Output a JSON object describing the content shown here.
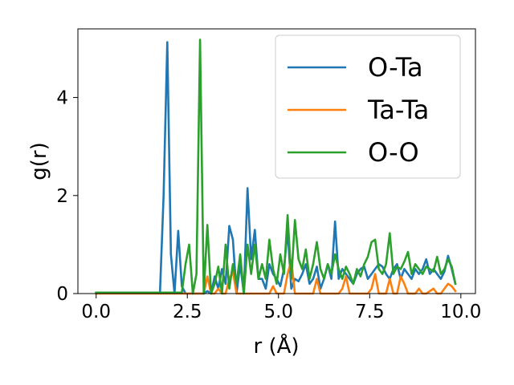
{
  "chart_data": {
    "type": "line",
    "title": "",
    "xlabel": "r (Å)",
    "ylabel": "g(r)",
    "xlim": [
      -0.5,
      10.4
    ],
    "ylim": [
      0,
      5.4
    ],
    "xticks": [
      0.0,
      2.5,
      5.0,
      7.5,
      10.0
    ],
    "xtick_labels": [
      "0.0",
      "2.5",
      "5.0",
      "7.5",
      "10.0"
    ],
    "yticks": [
      0,
      2,
      4
    ],
    "ytick_labels": [
      "0",
      "2",
      "4"
    ],
    "grid": false,
    "legend_position": "top-right",
    "series": [
      {
        "name": "O-Ta",
        "color": "#1f77b4",
        "x": [
          0,
          1.75,
          1.85,
          1.95,
          2.05,
          2.15,
          2.25,
          2.35,
          2.45,
          2.55,
          2.65,
          2.75,
          2.85,
          2.95,
          3.05,
          3.15,
          3.25,
          3.35,
          3.45,
          3.55,
          3.65,
          3.75,
          3.85,
          3.95,
          4.05,
          4.15,
          4.25,
          4.35,
          4.45,
          4.55,
          4.65,
          4.75,
          4.85,
          4.95,
          5.05,
          5.15,
          5.25,
          5.35,
          5.45,
          5.55,
          5.65,
          5.75,
          5.85,
          5.95,
          6.05,
          6.15,
          6.25,
          6.35,
          6.45,
          6.55,
          6.65,
          6.75,
          6.85,
          6.95,
          7.05,
          7.15,
          7.25,
          7.35,
          7.45,
          7.55,
          7.65,
          7.75,
          7.85,
          7.95,
          8.05,
          8.15,
          8.25,
          8.35,
          8.45,
          8.55,
          8.65,
          8.75,
          8.85,
          8.95,
          9.05,
          9.15,
          9.25,
          9.35,
          9.45,
          9.55,
          9.65,
          9.75,
          9.85
        ],
        "y": [
          0.02,
          0.02,
          2.0,
          5.13,
          0.8,
          0.0,
          1.28,
          0.15,
          0.0,
          0.0,
          0.0,
          0.0,
          0.0,
          0.0,
          0.05,
          0.0,
          0.35,
          0.1,
          0.5,
          0.2,
          1.38,
          1.1,
          0.0,
          0.6,
          0.0,
          2.15,
          0.7,
          1.3,
          0.3,
          0.3,
          0.1,
          0.6,
          0.4,
          0.3,
          0.15,
          0.5,
          1.3,
          0.1,
          0.3,
          0.25,
          0.4,
          0.6,
          0.2,
          0.3,
          0.55,
          0.1,
          0.3,
          0.6,
          0.3,
          1.47,
          0.3,
          0.5,
          0.4,
          0.3,
          0.2,
          0.4,
          0.5,
          0.55,
          0.3,
          0.4,
          0.5,
          0.6,
          0.55,
          0.4,
          0.3,
          0.5,
          0.6,
          0.3,
          0.5,
          0.4,
          0.3,
          0.5,
          0.4,
          0.5,
          0.7,
          0.4,
          0.5,
          0.4,
          0.3,
          0.45,
          0.77,
          0.5,
          0.2
        ]
      },
      {
        "name": "Ta-Ta",
        "color": "#ff7f0e",
        "x": [
          0,
          2.85,
          2.95,
          3.05,
          3.15,
          3.25,
          3.35,
          3.45,
          3.55,
          3.65,
          3.75,
          3.85,
          3.95,
          4.05,
          4.15,
          4.25,
          4.35,
          4.45,
          4.55,
          4.65,
          4.75,
          4.85,
          4.95,
          5.05,
          5.15,
          5.25,
          5.35,
          5.45,
          5.55,
          5.65,
          5.75,
          5.85,
          5.95,
          6.05,
          6.15,
          6.25,
          6.35,
          6.45,
          6.55,
          6.65,
          6.75,
          6.85,
          6.95,
          7.05,
          7.15,
          7.25,
          7.35,
          7.45,
          7.55,
          7.65,
          7.75,
          7.85,
          7.95,
          8.05,
          8.15,
          8.25,
          8.35,
          8.45,
          8.55,
          8.65,
          8.75,
          8.85,
          8.95,
          9.05,
          9.15,
          9.25,
          9.35,
          9.45,
          9.55,
          9.65,
          9.75,
          9.85
        ],
        "y": [
          0.0,
          0.0,
          0.0,
          0.35,
          0.0,
          0.0,
          0.1,
          0.0,
          0.0,
          0.3,
          0.45,
          0.0,
          0.0,
          0.0,
          0.0,
          0.0,
          0.0,
          0.0,
          0.0,
          0.0,
          0.0,
          0.15,
          0.0,
          0.0,
          0.0,
          0.4,
          0.68,
          0.0,
          0.0,
          0.0,
          0.0,
          0.0,
          0.0,
          0.3,
          0.0,
          0.0,
          0.0,
          0.0,
          0.0,
          0.0,
          0.1,
          0.35,
          0.0,
          0.0,
          0.0,
          0.0,
          0.0,
          0.0,
          0.1,
          0.4,
          0.0,
          0.0,
          0.0,
          0.3,
          0.0,
          0.0,
          0.35,
          0.2,
          0.0,
          0.0,
          0.0,
          0.1,
          0.0,
          0.0,
          0.05,
          0.1,
          0.0,
          0.0,
          0.1,
          0.2,
          0.15,
          0.05
        ]
      },
      {
        "name": "O-O",
        "color": "#2ca02c",
        "x": [
          0,
          2.35,
          2.45,
          2.55,
          2.65,
          2.75,
          2.85,
          2.95,
          3.05,
          3.15,
          3.25,
          3.35,
          3.45,
          3.55,
          3.65,
          3.75,
          3.85,
          3.95,
          4.05,
          4.15,
          4.25,
          4.35,
          4.45,
          4.55,
          4.65,
          4.75,
          4.85,
          4.95,
          5.05,
          5.15,
          5.25,
          5.35,
          5.45,
          5.55,
          5.65,
          5.75,
          5.85,
          5.95,
          6.05,
          6.15,
          6.25,
          6.35,
          6.45,
          6.55,
          6.65,
          6.75,
          6.85,
          6.95,
          7.05,
          7.15,
          7.25,
          7.35,
          7.45,
          7.55,
          7.65,
          7.75,
          7.85,
          7.95,
          8.05,
          8.15,
          8.25,
          8.35,
          8.45,
          8.55,
          8.65,
          8.75,
          8.85,
          8.95,
          9.05,
          9.15,
          9.25,
          9.35,
          9.45,
          9.55,
          9.65,
          9.75,
          9.85
        ],
        "y": [
          0.02,
          0.02,
          0.6,
          1.0,
          0.0,
          0.4,
          5.18,
          0.0,
          1.4,
          0.0,
          0.2,
          0.55,
          0.0,
          1.0,
          0.1,
          0.6,
          0.2,
          0.8,
          0.0,
          1.0,
          0.4,
          1.0,
          0.3,
          0.6,
          0.3,
          1.1,
          0.5,
          0.2,
          0.8,
          0.4,
          1.6,
          0.3,
          1.5,
          0.7,
          0.5,
          0.9,
          0.3,
          0.6,
          1.05,
          0.5,
          0.3,
          0.6,
          0.4,
          0.8,
          0.5,
          0.3,
          0.55,
          0.4,
          0.2,
          0.5,
          0.35,
          0.6,
          0.75,
          1.05,
          1.1,
          0.5,
          0.4,
          0.6,
          1.23,
          0.4,
          0.55,
          0.5,
          0.65,
          0.85,
          0.4,
          0.6,
          0.5,
          0.4,
          0.55,
          0.5,
          0.45,
          0.75,
          0.4,
          0.5,
          0.7,
          0.55,
          0.2
        ]
      }
    ]
  }
}
